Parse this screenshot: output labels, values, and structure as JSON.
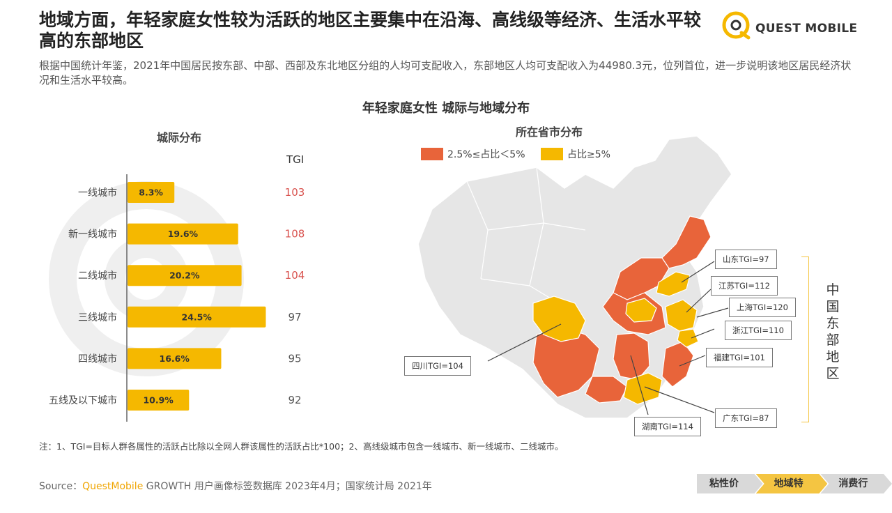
{
  "headline": "地域方面，年轻家庭女性较为活跃的地区主要集中在沿海、高线级等经济、生活水平较高的东部地区",
  "subtext": "根据中国统计年鉴，2021年中国居民按东部、中部、西部及东北地区分组的人均可支配收入，东部地区人均可支配收入为44980.3元，位列首位，进一步说明该地区居民经济状况和生活水平较高。",
  "logo_text": "QUEST MOBILE",
  "main_title": "年轻家庭女性 城际与地域分布",
  "colors": {
    "yellow": "#f5b800",
    "orange": "#e8643a",
    "map_gray": "#e6e6e6",
    "tgi_red": "#d9534f"
  },
  "chart_data": [
    {
      "type": "bar",
      "title": "城际分布",
      "categories": [
        "一线城市",
        "新一线城市",
        "二线城市",
        "三线城市",
        "四线城市",
        "五线及以下城市"
      ],
      "values": [
        8.3,
        19.6,
        20.2,
        24.5,
        16.6,
        10.9
      ],
      "value_labels": [
        "8.3%",
        "19.6%",
        "20.2%",
        "24.5%",
        "16.6%",
        "10.9%"
      ],
      "tgi_label": "TGI",
      "tgi": [
        "103",
        "108",
        "104",
        "97",
        "95",
        "92"
      ],
      "tgi_highlight": [
        true,
        true,
        true,
        false,
        false,
        false
      ],
      "xlim": [
        0,
        30
      ]
    },
    {
      "type": "map",
      "title": "所在省市分布",
      "legend": [
        {
          "label": "2.5%≤占比＜5%",
          "color": "#e8643a"
        },
        {
          "label": "占比≥5%",
          "color": "#f5b800"
        }
      ],
      "callouts": [
        {
          "label": "山东TGI=97"
        },
        {
          "label": "江苏TGI=112"
        },
        {
          "label": "上海TGI=120"
        },
        {
          "label": "浙江TGI=110"
        },
        {
          "label": "福建TGI=101"
        },
        {
          "label": "四川TGI=104"
        },
        {
          "label": "湖南TGI=114"
        },
        {
          "label": "广东TGI=87"
        }
      ],
      "region_label": "中国东部地区"
    }
  ],
  "note": "注：1、TGI=目标人群各属性的活跃占比除以全网人群该属性的活跃占比*100；2、高线级城市包含一线城市、新一线城市、二线城市。",
  "source_prefix": "Source：",
  "source_brand": "QuestMobile",
  "source_rest": " GROWTH 用户画像标签数据库 2023年4月；国家统计局 2021年",
  "nav": [
    "粘性价值",
    "地域特征",
    "消费行为"
  ]
}
